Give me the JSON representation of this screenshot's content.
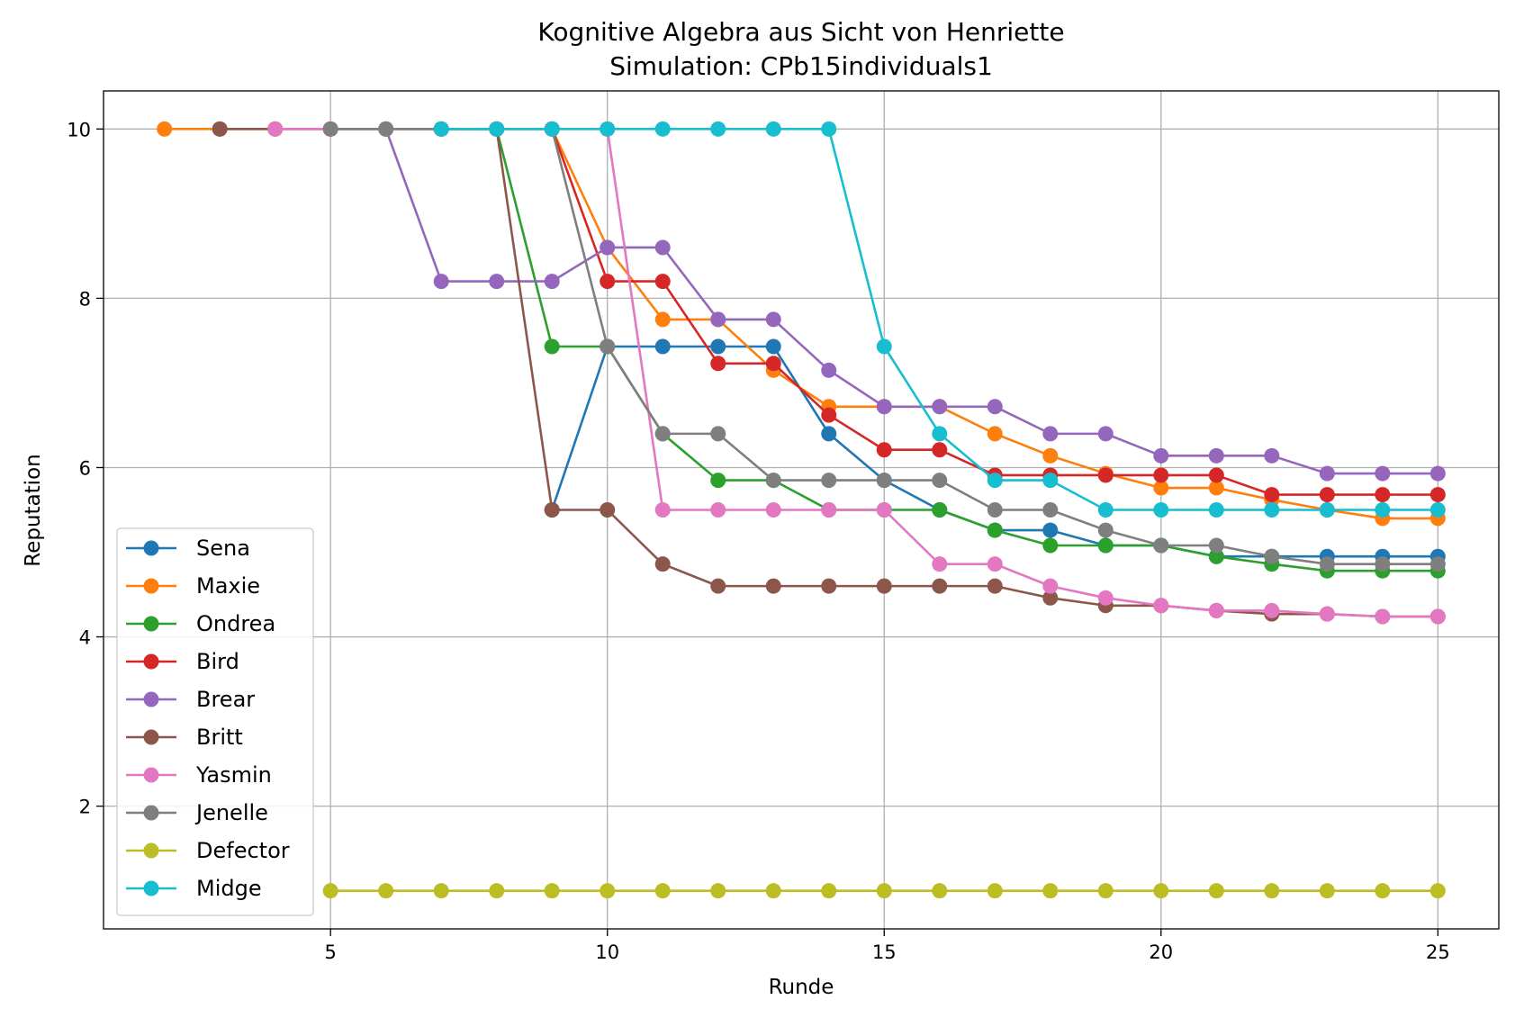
{
  "chart_data": {
    "type": "line",
    "title": "Kognitive Algebra aus Sicht von Henriette",
    "subtitle": "Simulation: CPb15individuals1",
    "xlabel": "Runde",
    "ylabel": "Reputation",
    "xlim": [
      0.9,
      26.1
    ],
    "ylim": [
      0.55,
      10.45
    ],
    "xticks": [
      5,
      10,
      15,
      20,
      25
    ],
    "yticks": [
      2,
      4,
      6,
      8,
      10
    ],
    "grid": true,
    "legend_position": "lower-left",
    "series": [
      {
        "name": "Sena",
        "color": "#1f77b4",
        "x": [
          9,
          10,
          11,
          12,
          13,
          14,
          15,
          16,
          17,
          18,
          19,
          20,
          21,
          22,
          23,
          24,
          25
        ],
        "y": [
          5.5,
          7.43,
          7.43,
          7.43,
          7.43,
          6.4,
          5.85,
          5.5,
          5.26,
          5.26,
          5.08,
          5.08,
          4.95,
          4.95,
          4.95,
          4.95,
          4.95
        ]
      },
      {
        "name": "Maxie",
        "color": "#ff7f0e",
        "x": [
          2,
          3,
          4,
          5,
          6,
          7,
          8,
          9,
          10,
          11,
          12,
          13,
          14,
          15,
          16,
          17,
          18,
          19,
          20,
          21,
          22,
          23,
          24,
          25
        ],
        "y": [
          10,
          10,
          10,
          10,
          10,
          10,
          10,
          10,
          8.6,
          7.75,
          7.75,
          7.15,
          6.72,
          6.72,
          6.72,
          6.4,
          6.14,
          5.93,
          5.76,
          5.76,
          5.62,
          5.5,
          5.4,
          5.4
        ]
      },
      {
        "name": "Ondrea",
        "color": "#2ca02c",
        "x": [
          7,
          8,
          9,
          10,
          11,
          12,
          13,
          14,
          15,
          16,
          17,
          18,
          19,
          20,
          21,
          22,
          23,
          24,
          25
        ],
        "y": [
          10,
          10,
          7.43,
          7.43,
          6.4,
          5.85,
          5.85,
          5.5,
          5.5,
          5.5,
          5.26,
          5.08,
          5.08,
          5.08,
          4.95,
          4.86,
          4.78,
          4.78,
          4.78
        ]
      },
      {
        "name": "Bird",
        "color": "#d62728",
        "x": [
          9,
          10,
          11,
          12,
          13,
          14,
          15,
          16,
          17,
          18,
          19,
          20,
          21,
          22,
          23,
          24,
          25
        ],
        "y": [
          10,
          8.2,
          8.2,
          7.23,
          7.23,
          6.62,
          6.21,
          6.21,
          5.91,
          5.91,
          5.91,
          5.91,
          5.91,
          5.68,
          5.68,
          5.68,
          5.68
        ]
      },
      {
        "name": "Brear",
        "color": "#9467bd",
        "x": [
          6,
          7,
          8,
          9,
          10,
          11,
          12,
          13,
          14,
          15,
          16,
          17,
          18,
          19,
          20,
          21,
          22,
          23,
          24,
          25
        ],
        "y": [
          10,
          8.2,
          8.2,
          8.2,
          8.6,
          8.6,
          7.75,
          7.75,
          7.15,
          6.72,
          6.72,
          6.72,
          6.4,
          6.4,
          6.14,
          6.14,
          6.14,
          5.93,
          5.93,
          5.93
        ]
      },
      {
        "name": "Britt",
        "color": "#8c564b",
        "x": [
          3,
          4,
          5,
          6,
          7,
          8,
          9,
          10,
          11,
          12,
          13,
          14,
          15,
          16,
          17,
          18,
          19,
          20,
          21,
          22,
          23,
          24,
          25
        ],
        "y": [
          10,
          10,
          10,
          10,
          10,
          10,
          5.5,
          5.5,
          4.86,
          4.6,
          4.6,
          4.6,
          4.6,
          4.6,
          4.6,
          4.46,
          4.37,
          4.37,
          4.31,
          4.27,
          4.27,
          4.24,
          4.24
        ]
      },
      {
        "name": "Yasmin",
        "color": "#e377c2",
        "x": [
          4,
          5,
          6,
          7,
          8,
          9,
          10,
          11,
          12,
          13,
          14,
          15,
          16,
          17,
          18,
          19,
          20,
          21,
          22,
          23,
          24,
          25
        ],
        "y": [
          10,
          10,
          10,
          10,
          10,
          10,
          10,
          5.5,
          5.5,
          5.5,
          5.5,
          5.5,
          4.86,
          4.86,
          4.6,
          4.46,
          4.37,
          4.31,
          4.31,
          4.27,
          4.24,
          4.24
        ]
      },
      {
        "name": "Jenelle",
        "color": "#7f7f7f",
        "x": [
          5,
          6,
          7,
          8,
          9,
          10,
          11,
          12,
          13,
          14,
          15,
          16,
          17,
          18,
          19,
          20,
          21,
          22,
          23,
          24,
          25
        ],
        "y": [
          10,
          10,
          10,
          10,
          10,
          7.43,
          6.4,
          6.4,
          5.85,
          5.85,
          5.85,
          5.85,
          5.5,
          5.5,
          5.26,
          5.08,
          5.08,
          4.95,
          4.86,
          4.86,
          4.86
        ]
      },
      {
        "name": "Defector",
        "color": "#bcbd22",
        "x": [
          5,
          6,
          7,
          8,
          9,
          10,
          11,
          12,
          13,
          14,
          15,
          16,
          17,
          18,
          19,
          20,
          21,
          22,
          23,
          24,
          25
        ],
        "y": [
          1,
          1,
          1,
          1,
          1,
          1,
          1,
          1,
          1,
          1,
          1,
          1,
          1,
          1,
          1,
          1,
          1,
          1,
          1,
          1,
          1
        ]
      },
      {
        "name": "Midge",
        "color": "#17becf",
        "x": [
          7,
          8,
          9,
          10,
          11,
          12,
          13,
          14,
          15,
          16,
          17,
          18,
          19,
          20,
          21,
          22,
          23,
          24,
          25
        ],
        "y": [
          10,
          10,
          10,
          10,
          10,
          10,
          10,
          10,
          7.43,
          6.4,
          5.85,
          5.85,
          5.5,
          5.5,
          5.5,
          5.5,
          5.5,
          5.5,
          5.5
        ]
      }
    ]
  }
}
